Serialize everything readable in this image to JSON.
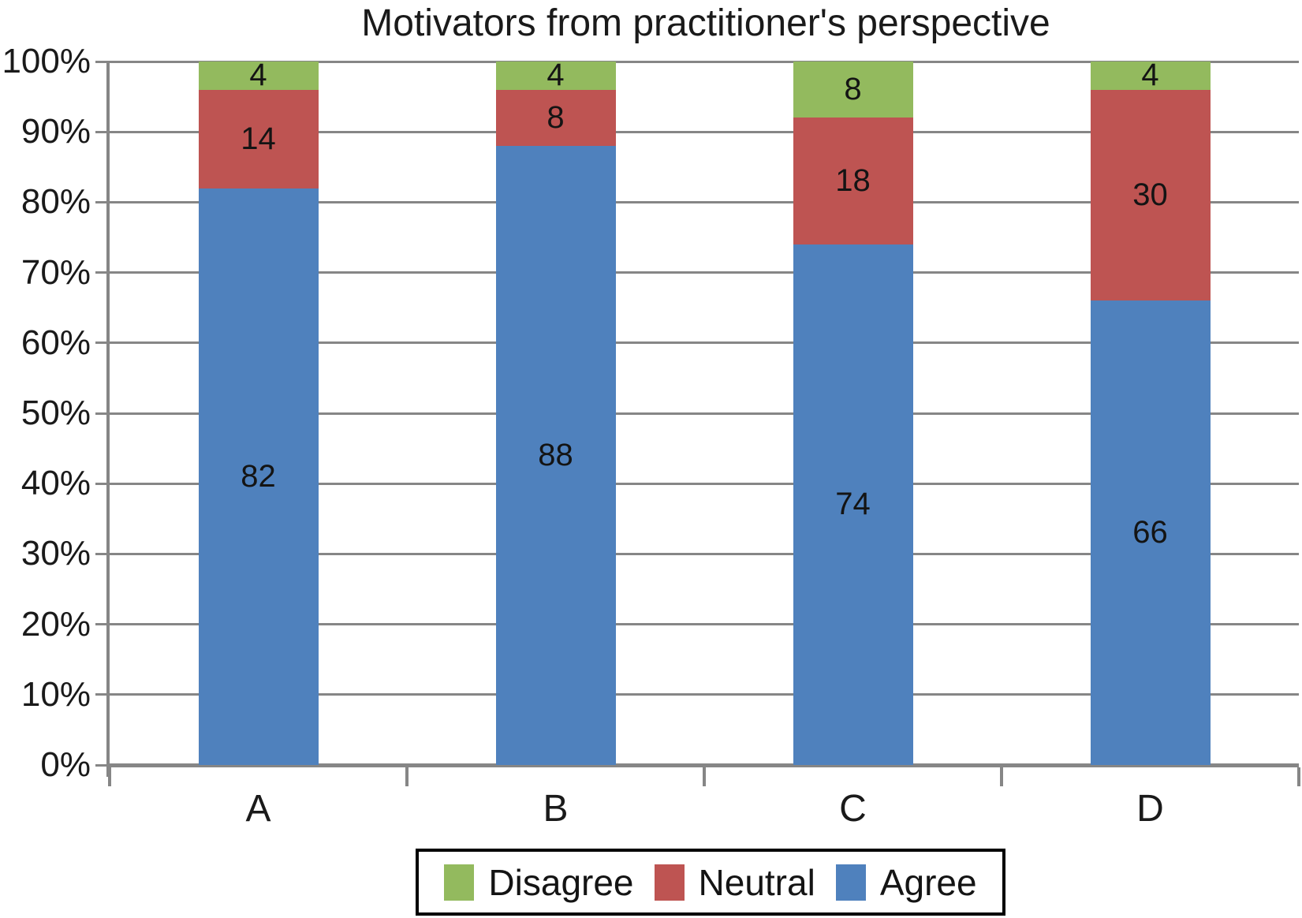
{
  "title": "Motivators from practitioner's perspective",
  "colors": {
    "agree": "#4F81BD",
    "neutral": "#BE5452",
    "disagree": "#93BA5E",
    "gridline": "#868686",
    "axis": "#868686",
    "label_text": "#141414",
    "legend_border": "#000000"
  },
  "chart_data": {
    "type": "bar",
    "stacked": true,
    "percent_scale": true,
    "title": "Motivators from practitioner's perspective",
    "categories": [
      "A",
      "B",
      "C",
      "D"
    ],
    "series": [
      {
        "name": "Agree",
        "color": "#4F81BD",
        "values": [
          82,
          88,
          74,
          66
        ]
      },
      {
        "name": "Neutral",
        "color": "#BE5452",
        "values": [
          14,
          8,
          18,
          30
        ]
      },
      {
        "name": "Disagree",
        "color": "#93BA5E",
        "values": [
          4,
          4,
          8,
          4
        ]
      }
    ],
    "data_labels_shown": true,
    "xlabel": "",
    "ylabel": "",
    "y_axis": {
      "min": 0,
      "max": 100,
      "step": 10,
      "tick_labels": [
        "0%",
        "10%",
        "20%",
        "30%",
        "40%",
        "50%",
        "60%",
        "70%",
        "80%",
        "90%",
        "100%"
      ]
    },
    "grid": true,
    "legend_position": "bottom",
    "legend": [
      {
        "label": "Disagree",
        "color": "#93BA5E"
      },
      {
        "label": "Neutral",
        "color": "#BE5452"
      },
      {
        "label": "Agree",
        "color": "#4F81BD"
      }
    ]
  }
}
